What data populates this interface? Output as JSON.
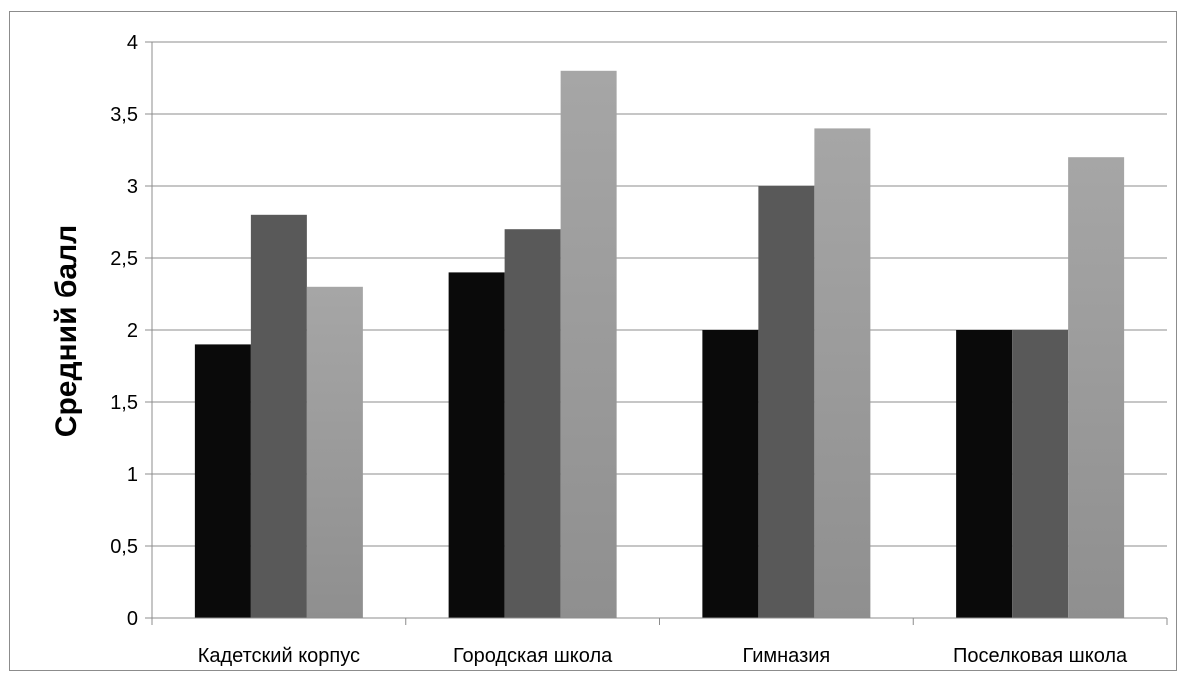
{
  "chart_data": {
    "type": "bar",
    "title": "",
    "xlabel": "",
    "ylabel": "Средний балл",
    "categories": [
      "Кадетский корпус",
      "Городская школа",
      "Гимназия",
      "Поселковая школа"
    ],
    "series": [
      {
        "values": [
          1.9,
          2.4,
          2.0,
          2.0
        ],
        "color": "#0a0a0a"
      },
      {
        "values": [
          2.8,
          2.7,
          3.0,
          2.0
        ],
        "color": "#595959"
      },
      {
        "values": [
          2.3,
          3.8,
          3.4,
          3.2
        ],
        "color": "#a6a6a6",
        "gradient_bottom": "#8f8f8f"
      }
    ],
    "ylim": [
      0,
      4
    ],
    "yticks": [
      0,
      0.5,
      1,
      1.5,
      2,
      2.5,
      3,
      3.5,
      4
    ],
    "ytick_labels": [
      "0",
      "0,5",
      "1",
      "1,5",
      "2",
      "2,5",
      "3",
      "3,5",
      "4"
    ],
    "grid": true,
    "legend": "none"
  }
}
